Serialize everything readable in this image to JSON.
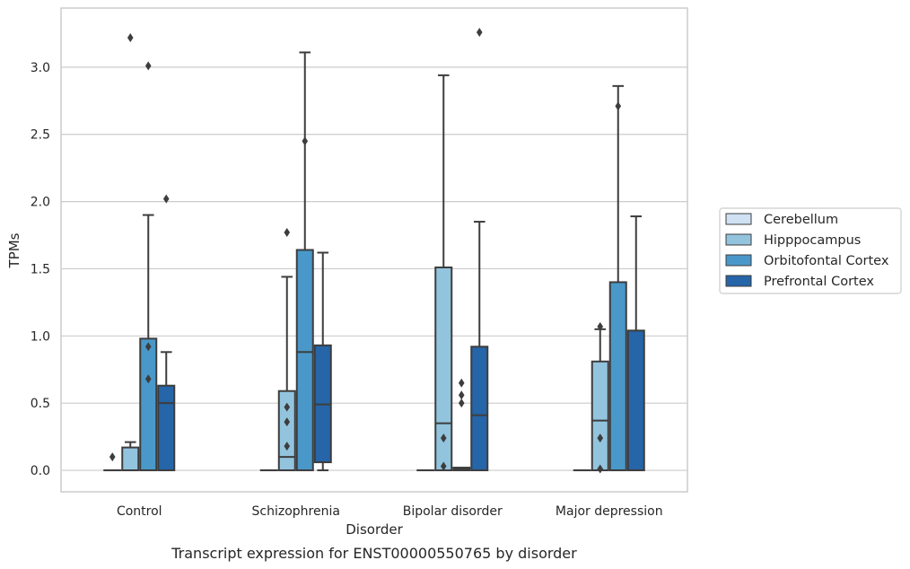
{
  "chart_data": {
    "type": "box",
    "caption": "Transcript expression for ENST00000550765 by disorder",
    "xlabel": "Disorder",
    "ylabel": "TPMs",
    "ylim": [
      -0.16,
      3.44
    ],
    "yticks": [
      0.0,
      0.5,
      1.0,
      1.5,
      2.0,
      2.5,
      3.0
    ],
    "ytick_labels": [
      "0.0",
      "0.5",
      "1.0",
      "1.5",
      "2.0",
      "2.5",
      "3.0"
    ],
    "grid": "horizontal",
    "legend_position": "right",
    "categories": [
      "Control",
      "Schizophrenia",
      "Bipolar disorder",
      "Major depression"
    ],
    "series": [
      {
        "name": "Cerebellum",
        "color": "#cfe1f2",
        "boxes": [
          {
            "q1": 0.0,
            "median": 0.0,
            "q3": 0.0,
            "whisker_low": 0.0,
            "whisker_high": 0.0,
            "outliers": [
              0.1
            ]
          },
          {
            "q1": 0.0,
            "median": 0.0,
            "q3": 0.0,
            "whisker_low": 0.0,
            "whisker_high": 0.0,
            "outliers": []
          },
          {
            "q1": 0.0,
            "median": 0.0,
            "q3": 0.0,
            "whisker_low": 0.0,
            "whisker_high": 0.0,
            "outliers": []
          },
          {
            "q1": 0.0,
            "median": 0.0,
            "q3": 0.0,
            "whisker_low": 0.0,
            "whisker_high": 0.0,
            "outliers": []
          }
        ]
      },
      {
        "name": "Hipppocampus",
        "color": "#93c4de",
        "boxes": [
          {
            "q1": 0.0,
            "median": 0.0,
            "q3": 0.17,
            "whisker_low": 0.0,
            "whisker_high": 0.21,
            "outliers": [
              3.22
            ]
          },
          {
            "q1": 0.0,
            "median": 0.1,
            "q3": 0.59,
            "whisker_low": 0.0,
            "whisker_high": 1.44,
            "outliers": [
              1.77,
              0.47,
              0.36,
              0.18
            ]
          },
          {
            "q1": 0.0,
            "median": 0.35,
            "q3": 1.51,
            "whisker_low": 0.0,
            "whisker_high": 2.94,
            "outliers": [
              0.24,
              0.03
            ]
          },
          {
            "q1": 0.0,
            "median": 0.37,
            "q3": 0.81,
            "whisker_low": 0.0,
            "whisker_high": 1.05,
            "outliers": [
              1.07,
              0.24,
              0.01
            ]
          }
        ]
      },
      {
        "name": "Orbitofontal Cortex",
        "color": "#4a98c9",
        "boxes": [
          {
            "q1": 0.0,
            "median": 0.0,
            "q3": 0.98,
            "whisker_low": 0.0,
            "whisker_high": 1.9,
            "outliers": [
              3.01,
              0.92,
              0.68
            ]
          },
          {
            "q1": 0.0,
            "median": 0.88,
            "q3": 1.64,
            "whisker_low": 0.0,
            "whisker_high": 3.11,
            "outliers": [
              2.45
            ]
          },
          {
            "q1": 0.0,
            "median": 0.01,
            "q3": 0.02,
            "whisker_low": 0.0,
            "whisker_high": 0.02,
            "outliers": [
              0.65,
              0.56,
              0.5
            ]
          },
          {
            "q1": 0.0,
            "median": 0.0,
            "q3": 1.4,
            "whisker_low": 0.0,
            "whisker_high": 2.86,
            "outliers": [
              2.71
            ]
          }
        ]
      },
      {
        "name": "Prefrontal Cortex",
        "color": "#2565a8",
        "boxes": [
          {
            "q1": 0.0,
            "median": 0.5,
            "q3": 0.63,
            "whisker_low": 0.0,
            "whisker_high": 0.88,
            "outliers": [
              2.02
            ]
          },
          {
            "q1": 0.06,
            "median": 0.49,
            "q3": 0.93,
            "whisker_low": 0.0,
            "whisker_high": 1.62,
            "outliers": []
          },
          {
            "q1": 0.0,
            "median": 0.41,
            "q3": 0.92,
            "whisker_low": 0.0,
            "whisker_high": 1.85,
            "outliers": [
              3.26
            ]
          },
          {
            "q1": 0.0,
            "median": 0.0,
            "q3": 1.04,
            "whisker_low": 0.0,
            "whisker_high": 1.89,
            "outliers": []
          }
        ]
      }
    ],
    "colors": {
      "grid": "#cccccc",
      "frame": "#cccccc",
      "lines": "#3d3d3d",
      "legend_border": "#cccccc"
    }
  }
}
